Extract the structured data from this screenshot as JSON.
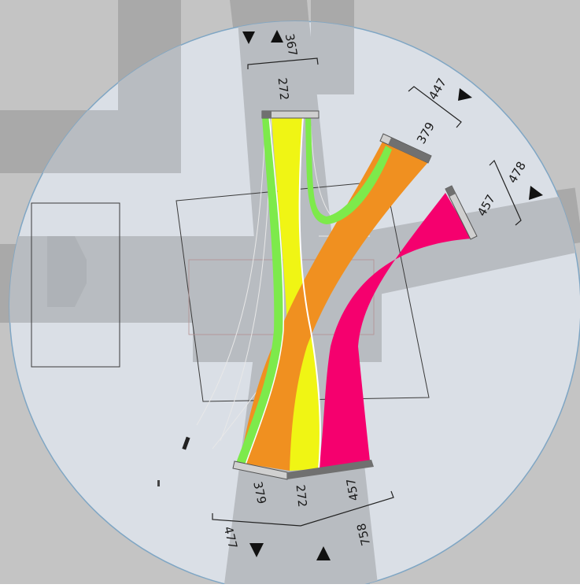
{
  "colors": {
    "background": "#c4c4c4",
    "road": "#a9a9a9",
    "circle_overlay": "#dadfe6",
    "circle_border": "#7fa6c4",
    "flow_yellow": "#f0f514",
    "flow_orange": "#f09020",
    "flow_pink": "#f5006e",
    "flow_green": "#7dea4b",
    "bar_light": "#d0d0d0",
    "bar_dark": "#707070"
  },
  "approaches": {
    "north": {
      "approach_total": "367",
      "leg_count": "272"
    },
    "northeast": {
      "approach_total": "447",
      "leg_count": "379"
    },
    "east": {
      "approach_total": "478",
      "leg_count": "457"
    },
    "south": {
      "flows": [
        "379",
        "272",
        "457"
      ],
      "exit_total": "477",
      "entry_total": "758"
    }
  },
  "icons": [
    "direction-triangle-out",
    "direction-triangle-in"
  ]
}
